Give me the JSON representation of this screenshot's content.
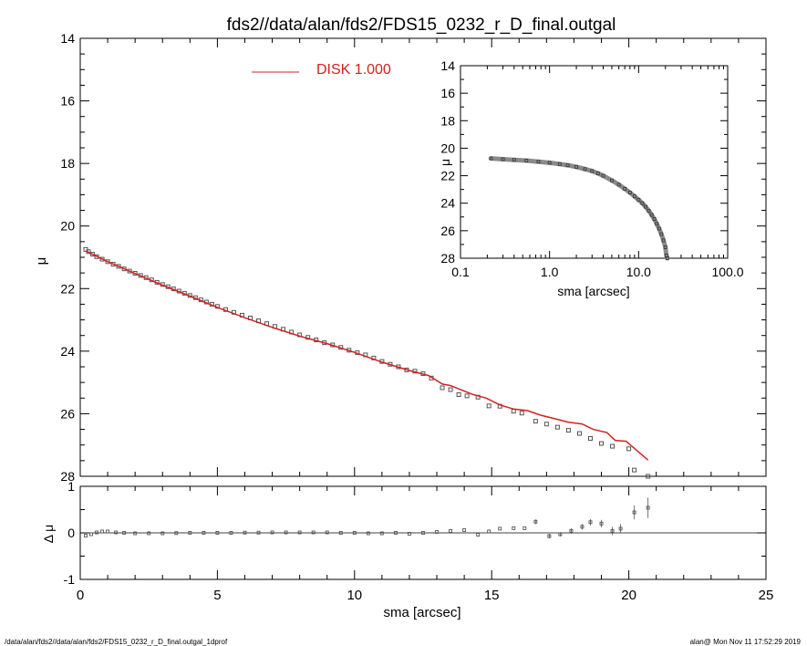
{
  "title": "fds2//data/alan/fds2/FDS15_0232_r_D_final.outgal",
  "footer_left": "/data/alan/fds2//data/alan/fds2/FDS15_0232_r_D_final.outgal_1dprof",
  "footer_right": "alan@  Mon Nov 11 17:52:29 2019",
  "colors": {
    "model": "#d42020",
    "data": "#555555",
    "axis": "#000000"
  },
  "chart_data": [
    {
      "id": "main",
      "type": "scatter",
      "ylabel": "μ",
      "xlim": [
        0,
        25
      ],
      "ylim": [
        28,
        14
      ],
      "yticks": [
        14,
        16,
        18,
        20,
        22,
        24,
        26,
        28
      ],
      "xticks": [
        0,
        5,
        10,
        15,
        20,
        25
      ],
      "legend": {
        "label": "DISK  1.000",
        "placement": "top-center"
      },
      "data_points": [
        [
          0.2,
          20.75
        ],
        [
          0.3,
          20.82
        ],
        [
          0.45,
          20.9
        ],
        [
          0.6,
          20.98
        ],
        [
          0.8,
          21.06
        ],
        [
          1.0,
          21.14
        ],
        [
          1.2,
          21.22
        ],
        [
          1.4,
          21.29
        ],
        [
          1.6,
          21.37
        ],
        [
          1.8,
          21.44
        ],
        [
          2.0,
          21.51
        ],
        [
          2.2,
          21.58
        ],
        [
          2.4,
          21.65
        ],
        [
          2.6,
          21.72
        ],
        [
          2.8,
          21.8
        ],
        [
          3.0,
          21.87
        ],
        [
          3.2,
          21.94
        ],
        [
          3.4,
          22.01
        ],
        [
          3.6,
          22.08
        ],
        [
          3.8,
          22.15
        ],
        [
          4.0,
          22.22
        ],
        [
          4.2,
          22.29
        ],
        [
          4.4,
          22.36
        ],
        [
          4.6,
          22.43
        ],
        [
          4.8,
          22.5
        ],
        [
          5.0,
          22.57
        ],
        [
          5.3,
          22.67
        ],
        [
          5.6,
          22.76
        ],
        [
          5.9,
          22.85
        ],
        [
          6.2,
          22.94
        ],
        [
          6.5,
          23.03
        ],
        [
          6.8,
          23.12
        ],
        [
          7.1,
          23.21
        ],
        [
          7.4,
          23.3
        ],
        [
          7.7,
          23.39
        ],
        [
          8.0,
          23.48
        ],
        [
          8.3,
          23.56
        ],
        [
          8.6,
          23.64
        ],
        [
          8.9,
          23.73
        ],
        [
          9.2,
          23.8
        ],
        [
          9.5,
          23.88
        ],
        [
          9.8,
          23.97
        ],
        [
          10.1,
          24.05
        ],
        [
          10.4,
          24.12
        ],
        [
          10.7,
          24.22
        ],
        [
          11.0,
          24.33
        ],
        [
          11.3,
          24.42
        ],
        [
          11.6,
          24.5
        ],
        [
          11.9,
          24.6
        ],
        [
          12.2,
          24.64
        ],
        [
          12.5,
          24.72
        ],
        [
          12.8,
          24.86
        ],
        [
          13.2,
          25.17
        ],
        [
          13.5,
          25.23
        ],
        [
          13.8,
          25.39
        ],
        [
          14.1,
          25.43
        ],
        [
          14.5,
          25.47
        ],
        [
          14.9,
          25.75
        ],
        [
          15.3,
          25.76
        ],
        [
          15.8,
          25.92
        ],
        [
          16.1,
          25.98
        ],
        [
          16.6,
          26.24
        ],
        [
          17.0,
          26.33
        ],
        [
          17.4,
          26.43
        ],
        [
          17.8,
          26.53
        ],
        [
          18.2,
          26.63
        ],
        [
          18.6,
          26.79
        ],
        [
          19.0,
          26.95
        ],
        [
          19.4,
          27.04
        ],
        [
          20.0,
          27.12
        ],
        [
          20.2,
          27.8
        ],
        [
          20.7,
          28.0
        ]
      ],
      "model_line": [
        [
          0.2,
          20.8
        ],
        [
          1.0,
          21.14
        ],
        [
          2.0,
          21.52
        ],
        [
          3.0,
          21.89
        ],
        [
          4.0,
          22.24
        ],
        [
          5.0,
          22.6
        ],
        [
          6.0,
          22.93
        ],
        [
          7.0,
          23.24
        ],
        [
          8.0,
          23.52
        ],
        [
          9.0,
          23.76
        ],
        [
          10.0,
          24.04
        ],
        [
          11.0,
          24.35
        ],
        [
          12.0,
          24.62
        ],
        [
          12.7,
          24.78
        ],
        [
          13.2,
          25.05
        ],
        [
          13.5,
          25.1
        ],
        [
          13.9,
          25.24
        ],
        [
          14.3,
          25.38
        ],
        [
          14.8,
          25.5
        ],
        [
          15.3,
          25.72
        ],
        [
          15.8,
          25.85
        ],
        [
          16.3,
          25.9
        ],
        [
          16.8,
          26.05
        ],
        [
          17.3,
          26.16
        ],
        [
          17.8,
          26.27
        ],
        [
          18.3,
          26.33
        ],
        [
          18.7,
          26.5
        ],
        [
          19.2,
          26.6
        ],
        [
          19.5,
          26.85
        ],
        [
          19.9,
          26.88
        ],
        [
          20.3,
          27.18
        ],
        [
          20.7,
          27.48
        ]
      ]
    },
    {
      "id": "inset",
      "type": "scatter",
      "xscale": "log",
      "xlabel": "sma [arcsec]",
      "ylabel": "μ",
      "xlim": [
        0.1,
        100
      ],
      "ylim": [
        28,
        14
      ],
      "xtick_labels": [
        "0.1",
        "1.0",
        "10.0",
        "100.0"
      ],
      "yticks": [
        14,
        16,
        18,
        20,
        22,
        24,
        26,
        28
      ],
      "data_points": [
        [
          0.22,
          20.74
        ],
        [
          0.3,
          20.8
        ],
        [
          0.4,
          20.85
        ],
        [
          0.55,
          20.9
        ],
        [
          0.75,
          20.98
        ],
        [
          1.0,
          21.06
        ],
        [
          1.3,
          21.15
        ],
        [
          1.6,
          21.24
        ],
        [
          2.0,
          21.36
        ],
        [
          2.5,
          21.52
        ],
        [
          3.0,
          21.66
        ],
        [
          3.5,
          21.83
        ],
        [
          4.0,
          22.0
        ],
        [
          5.0,
          22.34
        ],
        [
          6.0,
          22.65
        ],
        [
          7.0,
          22.95
        ],
        [
          8.0,
          23.23
        ],
        [
          9.0,
          23.5
        ],
        [
          10.0,
          23.75
        ],
        [
          11.0,
          24.0
        ],
        [
          12.0,
          24.26
        ],
        [
          13.0,
          24.55
        ],
        [
          14.0,
          24.85
        ],
        [
          15.0,
          25.15
        ],
        [
          16.0,
          25.5
        ],
        [
          17.0,
          25.85
        ],
        [
          18.0,
          26.25
        ],
        [
          19.0,
          26.7
        ],
        [
          20.0,
          27.2
        ],
        [
          20.5,
          27.8
        ],
        [
          21.0,
          28.0
        ]
      ]
    },
    {
      "id": "residual",
      "type": "scatter",
      "xlabel": "sma [arcsec]",
      "ylabel": "Δ μ",
      "xlim": [
        0,
        25
      ],
      "ylim": [
        -1,
        1
      ],
      "yticks": [
        -1,
        0,
        1
      ],
      "xticks": [
        0,
        5,
        10,
        15,
        20,
        25
      ],
      "points": [
        [
          0.2,
          -0.06,
          0.03
        ],
        [
          0.4,
          -0.03,
          0.02
        ],
        [
          0.6,
          0.01,
          0.02
        ],
        [
          0.8,
          0.03,
          0.02
        ],
        [
          1.0,
          0.03,
          0.02
        ],
        [
          1.3,
          0.01,
          0.02
        ],
        [
          1.6,
          0.0,
          0.02
        ],
        [
          2.0,
          -0.01,
          0.02
        ],
        [
          2.5,
          -0.01,
          0.02
        ],
        [
          3.0,
          -0.01,
          0.02
        ],
        [
          3.5,
          -0.005,
          0.02
        ],
        [
          4.0,
          0.0,
          0.02
        ],
        [
          4.5,
          0.0,
          0.02
        ],
        [
          5.0,
          0.0,
          0.02
        ],
        [
          5.5,
          0.0,
          0.02
        ],
        [
          6.0,
          0.005,
          0.02
        ],
        [
          6.5,
          0.005,
          0.02
        ],
        [
          7.0,
          0.01,
          0.02
        ],
        [
          7.5,
          0.01,
          0.02
        ],
        [
          8.0,
          0.01,
          0.02
        ],
        [
          8.5,
          0.01,
          0.02
        ],
        [
          9.0,
          0.01,
          0.02
        ],
        [
          9.5,
          0.0,
          0.02
        ],
        [
          10.0,
          0.0,
          0.02
        ],
        [
          10.5,
          -0.01,
          0.02
        ],
        [
          11.0,
          -0.01,
          0.02
        ],
        [
          11.5,
          0.0,
          0.02
        ],
        [
          12.0,
          -0.02,
          0.02
        ],
        [
          12.5,
          0.0,
          0.03
        ],
        [
          13.0,
          0.02,
          0.03
        ],
        [
          13.5,
          0.04,
          0.03
        ],
        [
          14.0,
          0.06,
          0.03
        ],
        [
          14.5,
          -0.04,
          0.03
        ],
        [
          14.9,
          0.03,
          0.04
        ],
        [
          15.3,
          0.09,
          0.04
        ],
        [
          15.8,
          0.1,
          0.04
        ],
        [
          16.2,
          0.1,
          0.04
        ],
        [
          16.6,
          0.24,
          0.05
        ],
        [
          17.1,
          -0.07,
          0.05
        ],
        [
          17.5,
          -0.03,
          0.05
        ],
        [
          17.9,
          0.04,
          0.06
        ],
        [
          18.3,
          0.13,
          0.06
        ],
        [
          18.6,
          0.23,
          0.07
        ],
        [
          19.0,
          0.2,
          0.08
        ],
        [
          19.4,
          0.04,
          0.09
        ],
        [
          19.7,
          0.09,
          0.1
        ],
        [
          20.2,
          0.44,
          0.15
        ],
        [
          20.7,
          0.54,
          0.22
        ]
      ]
    }
  ]
}
